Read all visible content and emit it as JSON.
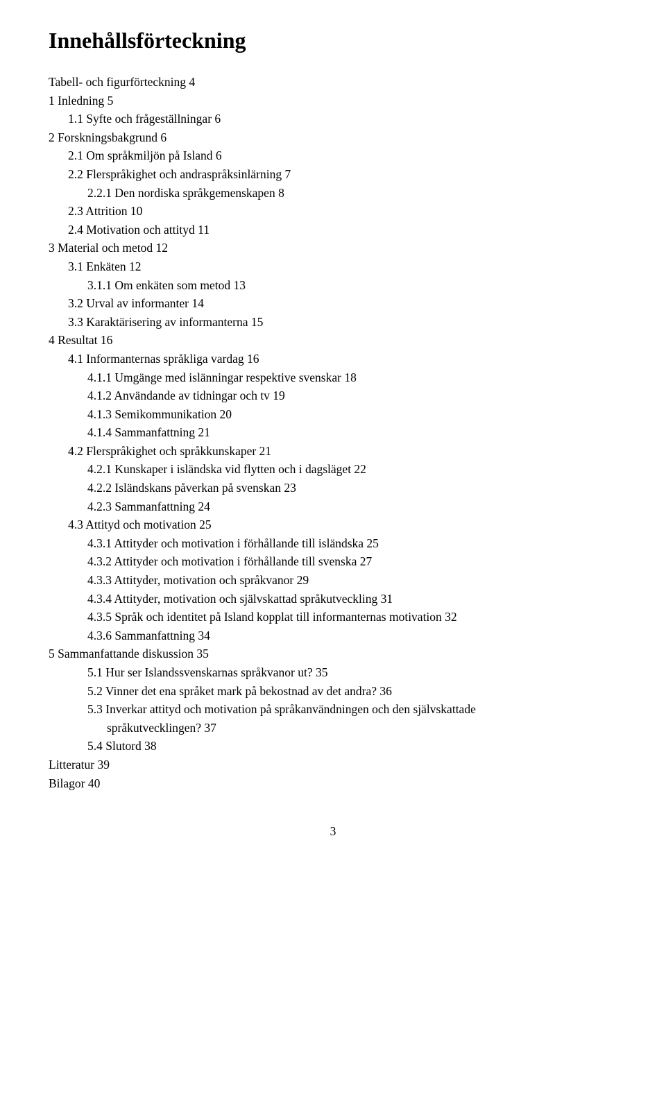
{
  "title": "Innehållsförteckning",
  "toc": [
    {
      "indent": 0,
      "text": "Tabell- och figurförteckning  4"
    },
    {
      "indent": 0,
      "text": "1 Inledning  5"
    },
    {
      "indent": 1,
      "text": "1.1 Syfte och frågeställningar  6"
    },
    {
      "indent": 0,
      "text": "2 Forskningsbakgrund  6"
    },
    {
      "indent": 1,
      "text": "2.1 Om språkmiljön på Island  6"
    },
    {
      "indent": 1,
      "text": "2.2 Flerspråkighet och andraspråksinlärning  7"
    },
    {
      "indent": 2,
      "text": "2.2.1 Den nordiska språkgemenskapen  8"
    },
    {
      "indent": 1,
      "text": "2.3 Attrition  10"
    },
    {
      "indent": 1,
      "text": "2.4 Motivation och attityd  11"
    },
    {
      "indent": 0,
      "text": "3 Material och metod  12"
    },
    {
      "indent": 1,
      "text": "3.1 Enkäten  12"
    },
    {
      "indent": 2,
      "text": "3.1.1 Om enkäten som metod  13"
    },
    {
      "indent": 1,
      "text": "3.2 Urval av informanter  14"
    },
    {
      "indent": 1,
      "text": "3.3 Karaktärisering av informanterna  15"
    },
    {
      "indent": 0,
      "text": "4 Resultat  16"
    },
    {
      "indent": 1,
      "text": "4.1 Informanternas språkliga vardag  16"
    },
    {
      "indent": 2,
      "text": "4.1.1 Umgänge med islänningar respektive svenskar  18"
    },
    {
      "indent": 2,
      "text": "4.1.2 Användande av tidningar och tv  19"
    },
    {
      "indent": 2,
      "text": "4.1.3 Semikommunikation  20"
    },
    {
      "indent": 2,
      "text": "4.1.4 Sammanfattning  21"
    },
    {
      "indent": 1,
      "text": "4.2 Flerspråkighet och språkkunskaper  21"
    },
    {
      "indent": 2,
      "text": "4.2.1 Kunskaper i isländska vid flytten och i dagsläget  22"
    },
    {
      "indent": 2,
      "text": "4.2.2 Isländskans påverkan på svenskan  23"
    },
    {
      "indent": 2,
      "text": "4.2.3 Sammanfattning  24"
    },
    {
      "indent": 1,
      "text": "4.3 Attityd och motivation  25"
    },
    {
      "indent": 2,
      "text": "4.3.1 Attityder och motivation i förhållande till isländska  25"
    },
    {
      "indent": 2,
      "text": "4.3.2 Attityder och motivation i förhållande till svenska  27"
    },
    {
      "indent": 2,
      "text": "4.3.3 Attityder, motivation och språkvanor  29"
    },
    {
      "indent": 2,
      "text": "4.3.4 Attityder, motivation och självskattad språkutveckling  31"
    },
    {
      "indent": 2,
      "text": "4.3.5 Språk och identitet på Island kopplat till informanternas motivation  32"
    },
    {
      "indent": 2,
      "text": "4.3.6 Sammanfattning  34"
    },
    {
      "indent": 0,
      "text": "5 Sammanfattande diskussion  35"
    },
    {
      "indent": 2,
      "text": "5.1 Hur ser Islandssvenskarnas språkvanor ut?  35"
    },
    {
      "indent": 2,
      "text": "5.2 Vinner det ena språket mark på bekostnad av det andra?  36"
    },
    {
      "indent": 2,
      "text": "5.3 Inverkar attityd och motivation på språkanvändningen och den självskattade"
    },
    {
      "indent": 3,
      "text": "språkutvecklingen?  37"
    },
    {
      "indent": 2,
      "text": "5.4 Slutord  38"
    },
    {
      "indent": 0,
      "text": "Litteratur  39"
    },
    {
      "indent": 0,
      "text": "Bilagor  40"
    }
  ],
  "pageNumber": "3"
}
